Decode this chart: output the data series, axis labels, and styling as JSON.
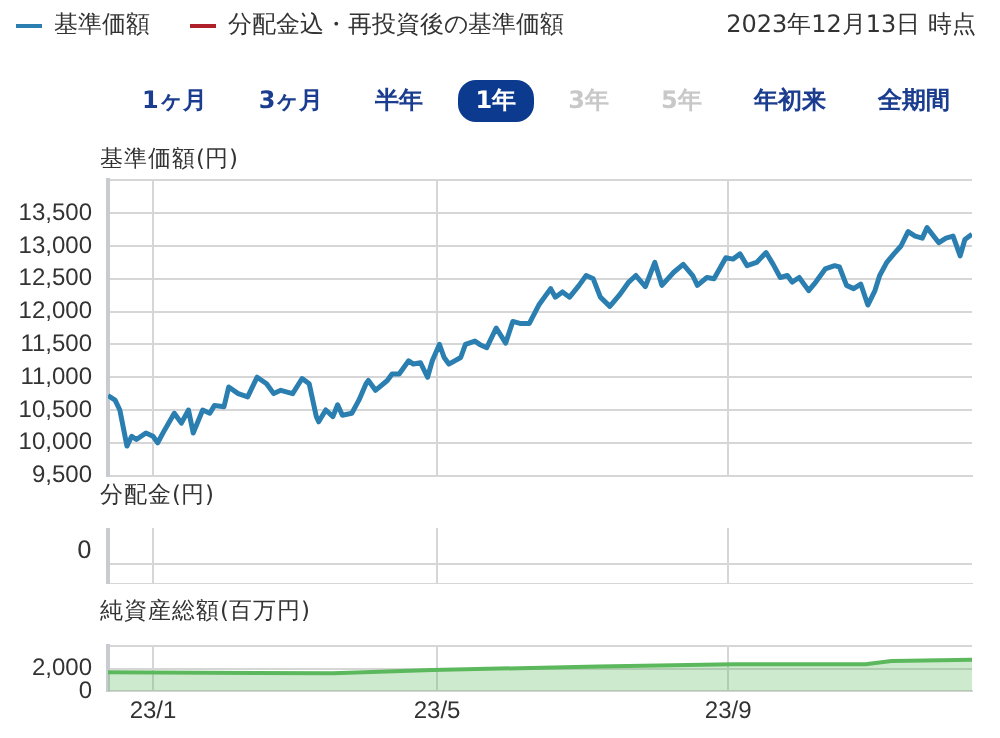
{
  "chart_data": [
    {
      "type": "line",
      "ylabel": "基準価額(円)",
      "legend": "top",
      "grid": true,
      "tick_labels": "y",
      "annotations": [
        "2023年12月13日 時点",
        "1ヶ月",
        "3ヶ月",
        "半年",
        "1年",
        "3年",
        "5年",
        "年初来",
        "全期間"
      ],
      "xlim": [
        "2022-12-13",
        "2023-12-13"
      ],
      "xticks": [
        {
          "value": "2023-01-01",
          "label": null
        },
        {
          "value": "2023-05-01",
          "label": null
        },
        {
          "value": "2023-09-01",
          "label": null
        }
      ],
      "ylim": [
        9500,
        14000
      ],
      "yticks": [
        {
          "value": 9500,
          "label": "9,500"
        },
        {
          "value": 10000,
          "label": "10,000"
        },
        {
          "value": 10500,
          "label": "10,500"
        },
        {
          "value": 11000,
          "label": "11,000"
        },
        {
          "value": 11500,
          "label": "11,500"
        },
        {
          "value": 12000,
          "label": "12,000"
        },
        {
          "value": 12500,
          "label": "12,500"
        },
        {
          "value": 13000,
          "label": "13,000"
        },
        {
          "value": 13500,
          "label": "13,500"
        },
        {
          "value": 14000,
          "label": null
        }
      ],
      "series": [
        {
          "name": "基準価額",
          "color": "#2a7fb0",
          "x": [
            "2022-12-13",
            "2022-12-16",
            "2022-12-18",
            "2022-12-21",
            "2022-12-23",
            "2022-12-25",
            "2022-12-29",
            "2023-01-01",
            "2023-01-03",
            "2023-01-06",
            "2023-01-10",
            "2023-01-13",
            "2023-01-16",
            "2023-01-18",
            "2023-01-22",
            "2023-01-25",
            "2023-01-27",
            "2023-01-31",
            "2023-02-02",
            "2023-02-06",
            "2023-02-10",
            "2023-02-14",
            "2023-02-18",
            "2023-02-21",
            "2023-02-24",
            "2023-03-01",
            "2023-03-05",
            "2023-03-08",
            "2023-03-11",
            "2023-03-12",
            "2023-03-15",
            "2023-03-18",
            "2023-03-20",
            "2023-03-22",
            "2023-03-26",
            "2023-03-29",
            "2023-04-01",
            "2023-04-02",
            "2023-04-05",
            "2023-04-10",
            "2023-04-12",
            "2023-04-15",
            "2023-04-19",
            "2023-04-21",
            "2023-04-24",
            "2023-04-27",
            "2023-04-29",
            "2023-05-02",
            "2023-05-04",
            "2023-05-06",
            "2023-05-11",
            "2023-05-13",
            "2023-05-17",
            "2023-05-19",
            "2023-05-22",
            "2023-05-26",
            "2023-05-30",
            "2023-06-02",
            "2023-06-05",
            "2023-06-09",
            "2023-06-13",
            "2023-06-18",
            "2023-06-20",
            "2023-06-23",
            "2023-06-26",
            "2023-06-30",
            "2023-07-03",
            "2023-07-06",
            "2023-07-09",
            "2023-07-13",
            "2023-07-17",
            "2023-07-21",
            "2023-07-24",
            "2023-07-28",
            "2023-08-01",
            "2023-08-04",
            "2023-08-09",
            "2023-08-13",
            "2023-08-17",
            "2023-08-19",
            "2023-08-23",
            "2023-08-26",
            "2023-08-31",
            "2023-09-03",
            "2023-09-06",
            "2023-09-09",
            "2023-09-13",
            "2023-09-17",
            "2023-09-20",
            "2023-09-23",
            "2023-09-26",
            "2023-09-28",
            "2023-10-01",
            "2023-10-05",
            "2023-10-08",
            "2023-10-12",
            "2023-10-16",
            "2023-10-18",
            "2023-10-21",
            "2023-10-24",
            "2023-10-27",
            "2023-10-30",
            "2023-11-02",
            "2023-11-04",
            "2023-11-07",
            "2023-11-10",
            "2023-11-13",
            "2023-11-16",
            "2023-11-19",
            "2023-11-22",
            "2023-11-24",
            "2023-11-29",
            "2023-12-02",
            "2023-12-05",
            "2023-12-08",
            "2023-12-10",
            "2023-12-13"
          ],
          "values": [
            10720,
            10650,
            10500,
            9950,
            10100,
            10050,
            10150,
            10100,
            10000,
            10200,
            10450,
            10300,
            10500,
            10150,
            10500,
            10450,
            10570,
            10550,
            10850,
            10750,
            10700,
            11000,
            10900,
            10750,
            10800,
            10750,
            10980,
            10900,
            10400,
            10320,
            10500,
            10400,
            10580,
            10420,
            10450,
            10650,
            10900,
            10950,
            10800,
            10950,
            11050,
            11050,
            11250,
            11200,
            11220,
            11000,
            11250,
            11500,
            11300,
            11200,
            11300,
            11500,
            11550,
            11500,
            11450,
            11750,
            11520,
            11850,
            11820,
            11820,
            12100,
            12350,
            12220,
            12300,
            12220,
            12400,
            12550,
            12500,
            12220,
            12080,
            12250,
            12450,
            12550,
            12380,
            12750,
            12400,
            12600,
            12720,
            12550,
            12400,
            12520,
            12500,
            12820,
            12800,
            12880,
            12700,
            12750,
            12900,
            12720,
            12520,
            12550,
            12450,
            12520,
            12320,
            12450,
            12650,
            12700,
            12680,
            12400,
            12350,
            12420,
            12100,
            12320,
            12550,
            12750,
            12880,
            13000,
            13220,
            13150,
            13120,
            13280,
            13050,
            13120,
            13150,
            12850,
            13100,
            13180
          ]
        },
        {
          "name": "分配金込・再投資後の基準価額",
          "color": "#b0202a",
          "values": [
            null,
            null
          ]
        }
      ]
    },
    {
      "type": "other",
      "ylabel": "分配金(円)",
      "annotations": [
        "0"
      ]
    },
    {
      "type": "area",
      "ylabel": "純資産総額(百万円)",
      "grid": true,
      "color": "#5cb85c",
      "xlim": [
        "2022-12-13",
        "2023-12-13"
      ],
      "xticks": [
        {
          "value": "2023-01-01",
          "label": "23/1"
        },
        {
          "value": "2023-05-01",
          "label": "23/5"
        },
        {
          "value": "2023-09-01",
          "label": "23/9"
        }
      ],
      "ylim": [
        0,
        4000
      ],
      "yticks": [
        0,
        {
          "value": 2000,
          "label": "2,000"
        },
        {
          "value": 4000,
          "label": null
        }
      ],
      "x": [
        "2022-12-13",
        "2023-03-18",
        "2023-04-29",
        "2023-07-08",
        "2023-09-03",
        "2023-10-29",
        "2023-11-09",
        "2023-12-13"
      ],
      "values": [
        1700,
        1600,
        1900,
        2200,
        2400,
        2400,
        2700,
        2800
      ]
    }
  ]
}
